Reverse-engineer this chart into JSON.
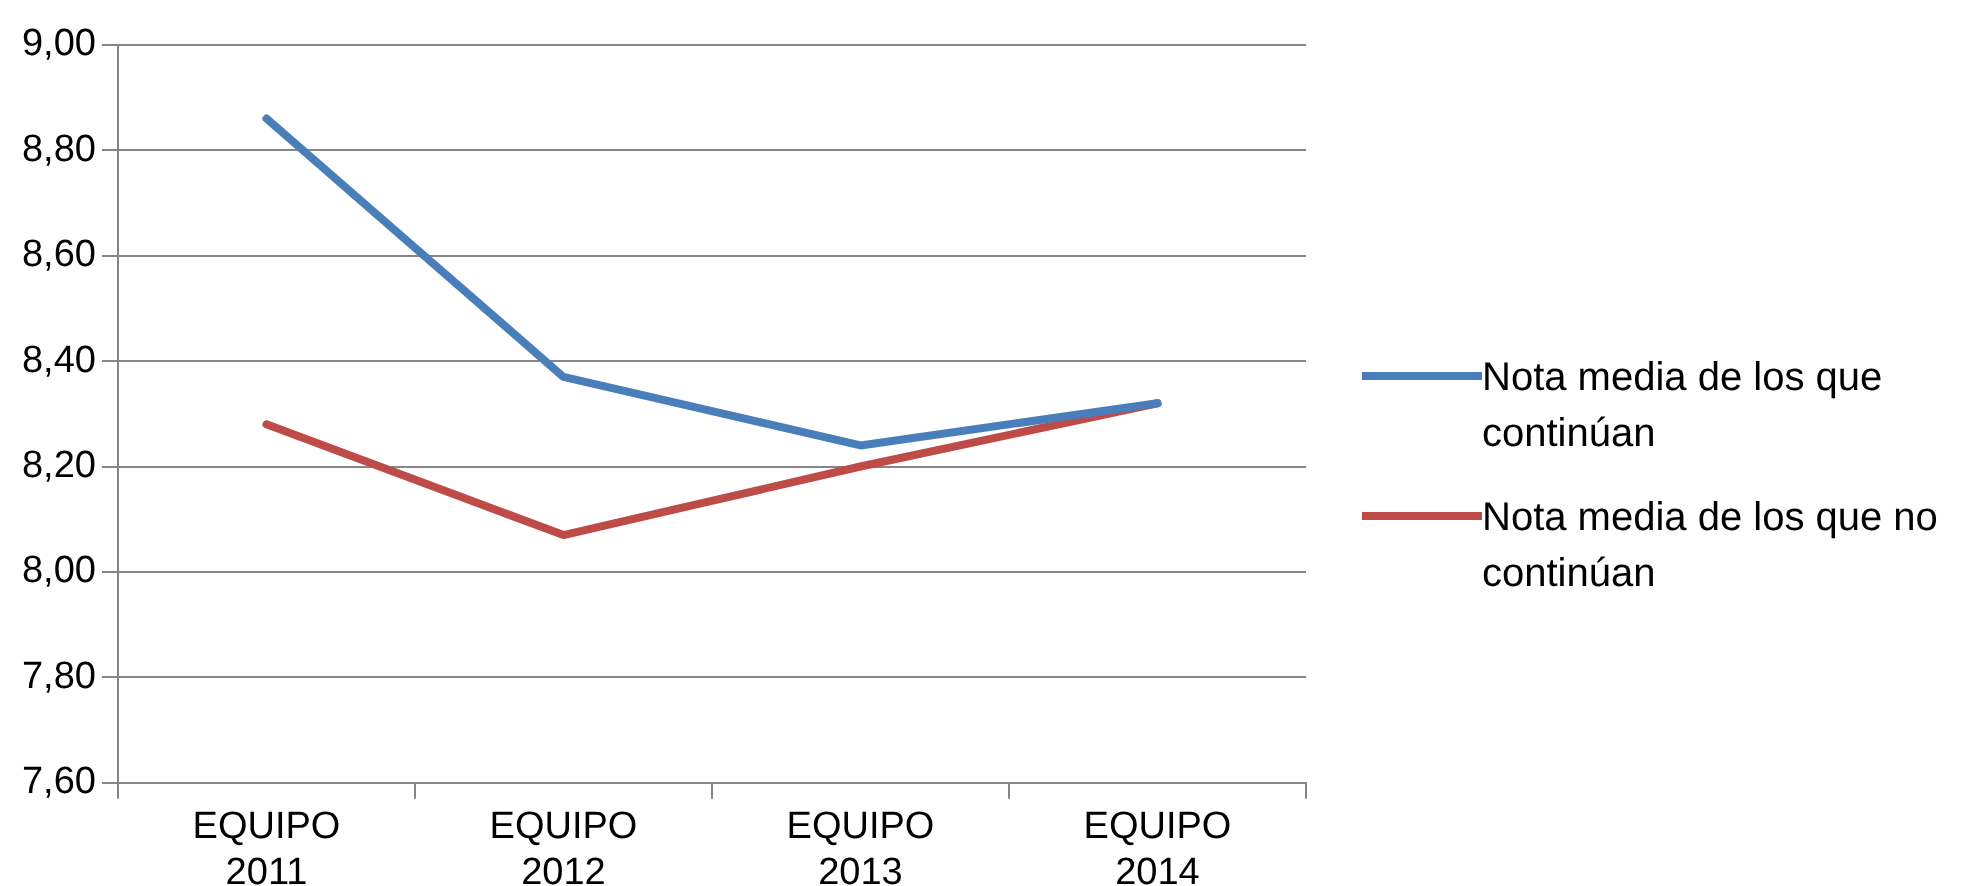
{
  "chart_data": {
    "type": "line",
    "categories": [
      "EQUIPO 2011",
      "EQUIPO 2012",
      "EQUIPO 2013",
      "EQUIPO 2014"
    ],
    "series": [
      {
        "name": "Nota media de los que continúan",
        "color": "#4a7ebb",
        "values": [
          8.86,
          8.37,
          8.24,
          8.32
        ]
      },
      {
        "name": "Nota media de los que no continúan",
        "color": "#be4b48",
        "values": [
          8.28,
          8.07,
          8.2,
          8.32
        ]
      }
    ],
    "ylim": [
      7.6,
      9
    ],
    "yticks": [
      {
        "value": 7.6,
        "label": "7,60"
      },
      {
        "value": 7.8,
        "label": "7,80"
      },
      {
        "value": 8,
        "label": "8,00"
      },
      {
        "value": 8.2,
        "label": "8,20"
      },
      {
        "value": 8.4,
        "label": "8,40"
      },
      {
        "value": 8.6,
        "label": "8,60"
      },
      {
        "value": 8.8,
        "label": "8,80"
      },
      {
        "value": 9,
        "label": "9,00"
      }
    ],
    "grid": "y",
    "legend": "right",
    "marker": "none",
    "line_style": "solid"
  }
}
